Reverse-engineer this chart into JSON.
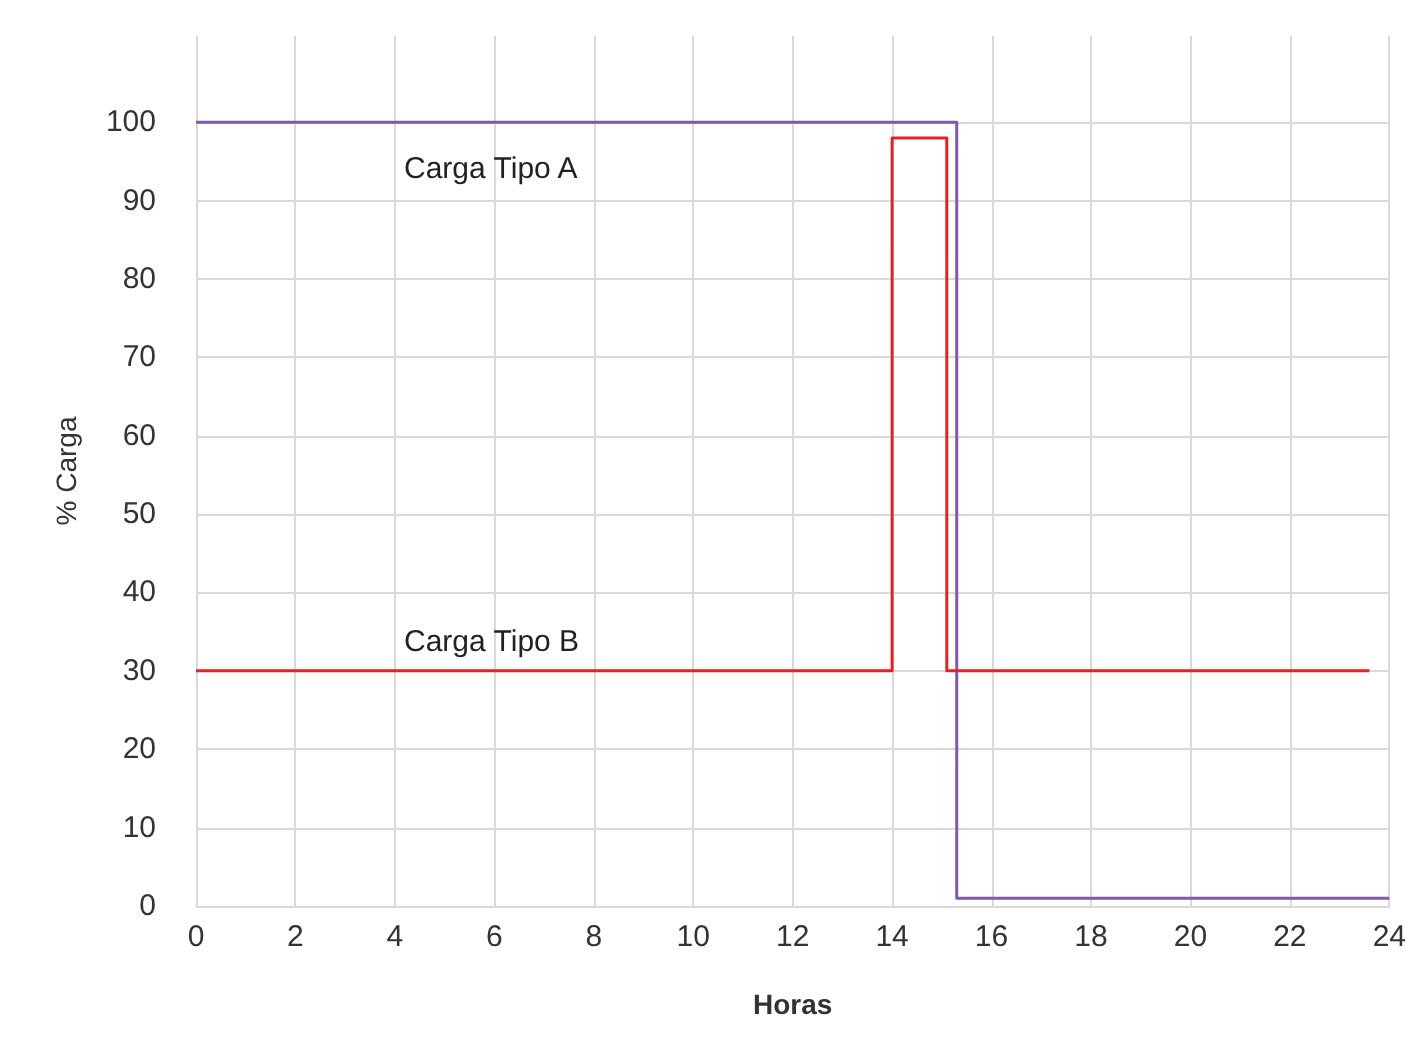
{
  "chart_data": {
    "type": "line",
    "xlabel": "Horas",
    "ylabel": "% Carga",
    "xlim": [
      0,
      24
    ],
    "xticks": [
      0,
      2,
      4,
      6,
      8,
      10,
      12,
      14,
      16,
      18,
      20,
      22,
      24
    ],
    "ylim": [
      0,
      111
    ],
    "yticks": [
      0,
      10,
      20,
      30,
      40,
      50,
      60,
      70,
      80,
      90,
      100
    ],
    "grid": true,
    "legend": false,
    "marker": "none",
    "line_style": "solid",
    "series": [
      {
        "name": "Carga Tipo A",
        "color": "#7f5aa8",
        "x": [
          0,
          15.3,
          15.3,
          24
        ],
        "values": [
          100,
          100,
          1,
          1
        ]
      },
      {
        "name": "Carga Tipo B",
        "color": "#e02424",
        "x": [
          0,
          14,
          14,
          15.1,
          15.1,
          23.6
        ],
        "values": [
          30,
          30,
          98,
          98,
          30,
          30
        ]
      }
    ]
  }
}
